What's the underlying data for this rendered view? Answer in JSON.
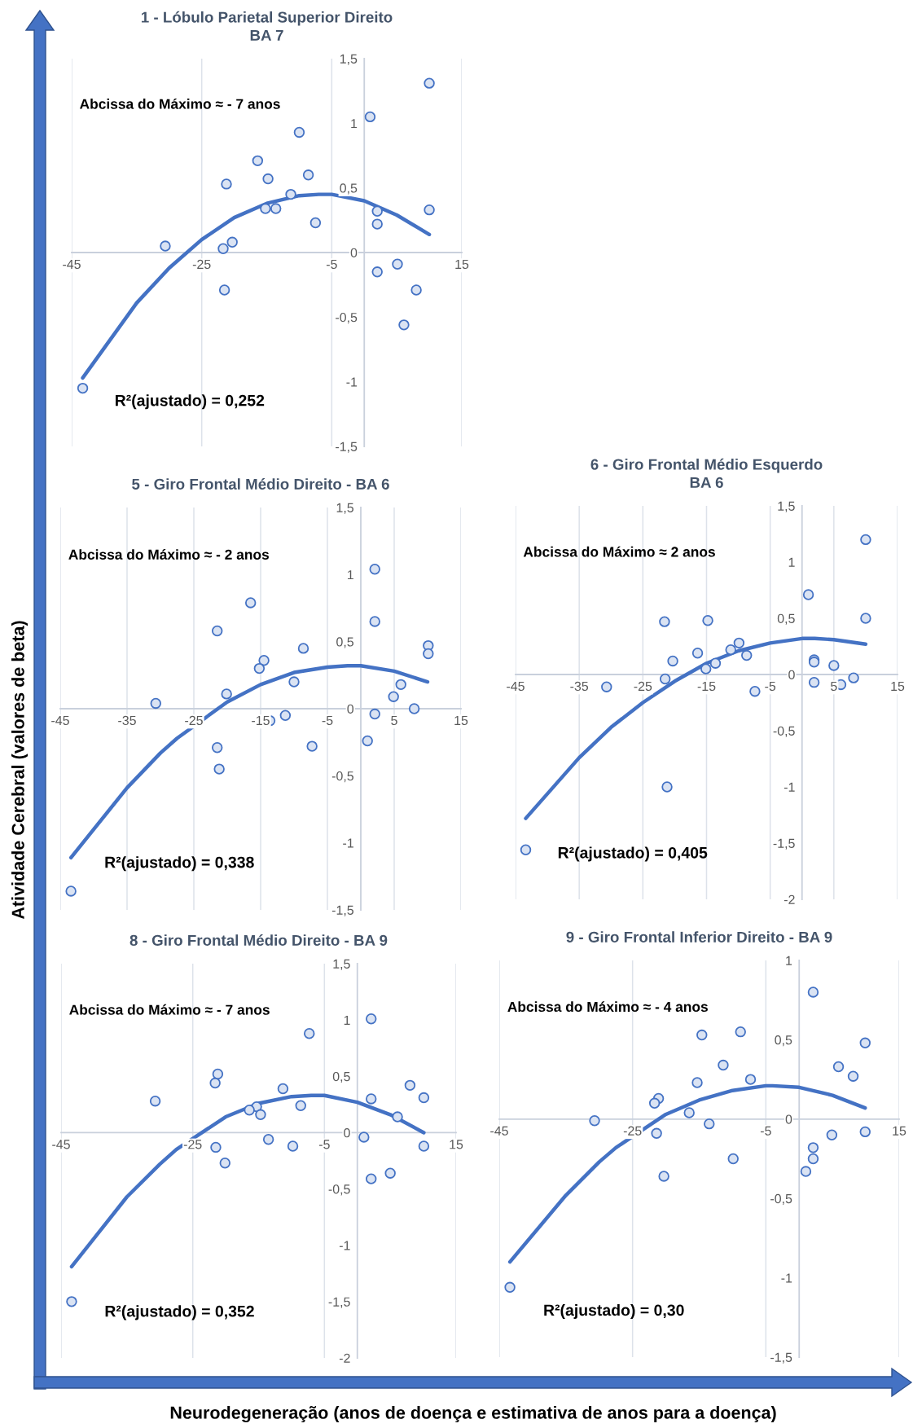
{
  "chart_data": [
    {
      "type": "scatter",
      "title": "1 - Lóbulo Parietal Superior Direito\nBA 7",
      "annotations": [
        "Abcissa do Máximo ≈ - 7 anos",
        "R²(ajustado) = 0,252"
      ],
      "xlim": [
        -45,
        15
      ],
      "xticks": [
        -45,
        -25,
        -5,
        15
      ],
      "ylim": [
        -1.5,
        1.5
      ],
      "yticks": [
        {
          "value": -1.5,
          "label": "-1,5"
        },
        -1,
        {
          "value": -0.5,
          "label": "-0,5"
        },
        0,
        {
          "value": 0.5,
          "label": "0,5"
        },
        1,
        {
          "value": 1.5,
          "label": "1,5"
        }
      ],
      "grid": "x",
      "series": [
        {
          "type": "scatter",
          "marker": "circle",
          "color": "#4472c4",
          "x": [
            10.0,
            0.9,
            -10.0,
            -16.4,
            -8.6,
            -21.2,
            -14.8,
            -11.3,
            -15.2,
            -13.6,
            -7.5,
            2.0,
            2.0,
            10.0,
            -30.6,
            -21.7,
            -20.3,
            -21.5,
            2.0,
            5.1,
            8.0,
            6.1,
            -43.3
          ],
          "values": [
            1.31,
            1.05,
            0.93,
            0.71,
            0.6,
            0.53,
            0.57,
            0.45,
            0.34,
            0.34,
            0.23,
            0.32,
            0.22,
            0.33,
            0.05,
            0.03,
            0.08,
            -0.29,
            -0.15,
            -0.09,
            -0.29,
            -0.56,
            -1.05
          ]
        },
        {
          "type": "line",
          "marker": "none",
          "color": "#4472c4",
          "x": [
            -43.3,
            -35,
            -30,
            -25,
            -20,
            -15,
            -10,
            -7,
            -5,
            0,
            5,
            10
          ],
          "values": [
            -0.97,
            -0.39,
            -0.12,
            0.1,
            0.27,
            0.38,
            0.44,
            0.45,
            0.45,
            0.4,
            0.29,
            0.14
          ]
        }
      ]
    },
    {
      "type": "scatter",
      "title": "5 - Giro Frontal Médio Direito - BA 6",
      "annotations": [
        "Abcissa do Máximo ≈ - 2 anos",
        "R²(ajustado) = 0,338"
      ],
      "xlim": [
        -45,
        15
      ],
      "xticks": [
        -45,
        -35,
        -25,
        -15,
        -5,
        5,
        15
      ],
      "ylim": [
        -1.5,
        1.5
      ],
      "yticks": [
        {
          "value": -1.5,
          "label": "-1,5"
        },
        -1,
        {
          "value": -0.5,
          "label": "-0,5"
        },
        0,
        {
          "value": 0.5,
          "label": "0,5"
        },
        1,
        {
          "value": 1.5,
          "label": "1,5"
        }
      ],
      "grid": "x",
      "series": [
        {
          "type": "scatter",
          "marker": "circle",
          "color": "#4472c4",
          "x": [
            2.1,
            -16.5,
            -21.5,
            2.1,
            -8.6,
            10.1,
            10.1,
            -14.5,
            -15.2,
            -10.0,
            6.0,
            4.9,
            -20.1,
            -30.7,
            8.0,
            2.1,
            -11.3,
            -13.6,
            1.0,
            -7.3,
            -21.5,
            -21.2,
            -43.4
          ],
          "values": [
            1.04,
            0.79,
            0.58,
            0.65,
            0.45,
            0.47,
            0.41,
            0.36,
            0.3,
            0.2,
            0.18,
            0.09,
            0.11,
            0.04,
            0.0,
            -0.04,
            -0.05,
            -0.09,
            -0.24,
            -0.28,
            -0.29,
            -0.45,
            -1.36
          ]
        },
        {
          "type": "line",
          "marker": "none",
          "color": "#4472c4",
          "x": [
            -43.4,
            -35,
            -30,
            -27.5,
            -20,
            -15,
            -10,
            -5,
            -2,
            0,
            5,
            10
          ],
          "values": [
            -1.11,
            -0.59,
            -0.33,
            -0.22,
            0.05,
            0.18,
            0.27,
            0.31,
            0.32,
            0.32,
            0.28,
            0.2
          ]
        }
      ]
    },
    {
      "type": "scatter",
      "title": "6 - Giro Frontal Médio Esquerdo\nBA 6",
      "annotations": [
        "Abcissa do Máximo ≈ 2 anos",
        "R²(ajustado) = 0,405"
      ],
      "xlim": [
        -45,
        15
      ],
      "xticks": [
        -45,
        -35,
        -25,
        -15,
        -5,
        5,
        15
      ],
      "ylim": [
        -2,
        1.5
      ],
      "yticks": [
        -2,
        {
          "value": -1.5,
          "label": "-1,5"
        },
        -1,
        {
          "value": -0.5,
          "label": "-0,5"
        },
        0,
        {
          "value": 0.5,
          "label": "0,5"
        },
        1,
        {
          "value": 1.5,
          "label": "1,5"
        }
      ],
      "grid": "x",
      "series": [
        {
          "type": "scatter",
          "marker": "circle",
          "color": "#4472c4",
          "x": [
            10.0,
            1.0,
            10.0,
            -21.6,
            -14.8,
            -9.9,
            -11.2,
            -16.4,
            -8.7,
            -20.3,
            1.9,
            1.9,
            -13.6,
            5.0,
            -15.1,
            -21.5,
            8.1,
            1.9,
            6.1,
            -30.7,
            -7.4,
            -21.2,
            -43.4
          ],
          "values": [
            1.2,
            0.71,
            0.5,
            0.47,
            0.48,
            0.28,
            0.22,
            0.19,
            0.17,
            0.12,
            0.13,
            0.11,
            0.1,
            0.08,
            0.05,
            -0.04,
            -0.03,
            -0.07,
            -0.09,
            -0.11,
            -0.15,
            -1.0,
            -1.56
          ]
        },
        {
          "type": "line",
          "marker": "none",
          "color": "#4472c4",
          "x": [
            -43.4,
            -35,
            -30,
            -25,
            -20,
            -15,
            -10,
            -5,
            0,
            2,
            5,
            10
          ],
          "values": [
            -1.28,
            -0.74,
            -0.47,
            -0.25,
            -0.06,
            0.1,
            0.21,
            0.28,
            0.32,
            0.32,
            0.31,
            0.27
          ]
        }
      ]
    },
    {
      "type": "scatter",
      "title": "8 - Giro Frontal Médio Direito - BA 9",
      "annotations": [
        "Abcissa do Máximo ≈ - 7 anos",
        "R²(ajustado) = 0,352"
      ],
      "xlim": [
        -45,
        15
      ],
      "xticks": [
        -45,
        -25,
        -5,
        15
      ],
      "ylim": [
        -2,
        1.5
      ],
      "yticks": [
        -2,
        {
          "value": -1.5,
          "label": "-1,5"
        },
        -1,
        {
          "value": -0.5,
          "label": "-0,5"
        },
        0,
        {
          "value": 0.5,
          "label": "0,5"
        },
        1,
        {
          "value": 1.5,
          "label": "1,5"
        }
      ],
      "grid": "x",
      "series": [
        {
          "type": "scatter",
          "marker": "circle",
          "color": "#4472c4",
          "x": [
            2.1,
            -7.3,
            -21.2,
            -21.6,
            8.0,
            -11.3,
            -30.7,
            2.1,
            10.1,
            -8.6,
            -15.3,
            -16.4,
            -14.7,
            6.1,
            -13.5,
            1.0,
            -21.5,
            -9.8,
            10.1,
            -20.1,
            5.0,
            2.1,
            -43.4
          ],
          "values": [
            1.01,
            0.88,
            0.52,
            0.44,
            0.42,
            0.39,
            0.28,
            0.3,
            0.31,
            0.24,
            0.23,
            0.2,
            0.16,
            0.14,
            -0.06,
            -0.04,
            -0.13,
            -0.12,
            -0.12,
            -0.27,
            -0.36,
            -0.41,
            -1.5
          ]
        },
        {
          "type": "line",
          "marker": "none",
          "color": "#4472c4",
          "x": [
            -43.4,
            -35,
            -30,
            -27.5,
            -20,
            -15,
            -10,
            -7,
            -5,
            0,
            5,
            10.1
          ],
          "values": [
            -1.19,
            -0.57,
            -0.28,
            -0.15,
            0.14,
            0.26,
            0.32,
            0.33,
            0.33,
            0.27,
            0.16,
            0.0
          ]
        }
      ]
    },
    {
      "type": "scatter",
      "title": "9 - Giro Frontal Inferior Direito - BA 9",
      "annotations": [
        "Abcissa do Máximo ≈ - 4 anos",
        "R²(ajustado) = 0,30"
      ],
      "xlim": [
        -45,
        15
      ],
      "xticks": [
        -45,
        -25,
        -5,
        15
      ],
      "ylim": [
        -1.5,
        1
      ],
      "yticks": [
        {
          "value": -1.5,
          "label": "-1,5"
        },
        -1,
        {
          "value": -0.5,
          "label": "-0,5"
        },
        0,
        {
          "value": 0.5,
          "label": "0,5"
        },
        1
      ],
      "grid": "x",
      "series": [
        {
          "type": "scatter",
          "marker": "circle",
          "color": "#4472c4",
          "x": [
            2.1,
            -14.6,
            -8.8,
            9.9,
            -11.4,
            5.9,
            8.1,
            -7.3,
            -15.3,
            -21.1,
            -21.7,
            -16.5,
            -30.7,
            -13.5,
            -21.4,
            9.9,
            4.9,
            2.1,
            2.1,
            -9.9,
            1.0,
            -20.3,
            -43.4
          ],
          "values": [
            0.8,
            0.53,
            0.55,
            0.48,
            0.34,
            0.33,
            0.27,
            0.25,
            0.23,
            0.13,
            0.1,
            0.04,
            -0.01,
            -0.03,
            -0.09,
            -0.08,
            -0.1,
            -0.18,
            -0.25,
            -0.25,
            -0.33,
            -0.36,
            -1.06
          ]
        },
        {
          "type": "line",
          "marker": "none",
          "color": "#4472c4",
          "x": [
            -43.4,
            -35,
            -30,
            -27.5,
            -20,
            -15,
            -10,
            -5,
            -4,
            0,
            5,
            9.9
          ],
          "values": [
            -0.9,
            -0.48,
            -0.27,
            -0.18,
            0.03,
            0.12,
            0.18,
            0.21,
            0.21,
            0.2,
            0.15,
            0.07
          ]
        }
      ]
    },
    {
      "type": "other",
      "xlabel": "Neurodegeneração (anos de doença e estimativa de anos para a doença)",
      "ylabel": "Atividade Cerebral (valores de beta)"
    }
  ]
}
